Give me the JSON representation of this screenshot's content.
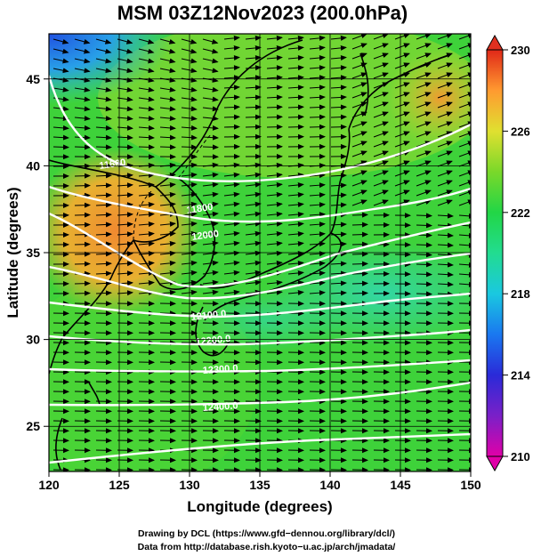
{
  "title": "MSM 03Z12Nov2023 (200.0hPa)",
  "footer": {
    "line1": "Drawing by DCL (https://www.gfd−dennou.org/library/dcl/)",
    "line2": "Data from http://database.rish.kyoto−u.ac.jp/arch/jmadata/"
  },
  "axes": {
    "xlabel": "Longitude (degrees)",
    "ylabel": "Latitude  (degrees)",
    "xticks": [
      "120",
      "125",
      "130",
      "135",
      "140",
      "145",
      "150"
    ],
    "yticks": [
      "25",
      "30",
      "35",
      "40",
      "45"
    ]
  },
  "colorbar": {
    "ticks": [
      "210",
      "214",
      "218",
      "222",
      "226",
      "230"
    ],
    "colors": [
      "#e000a8",
      "#2a2ad8",
      "#1aa0f0",
      "#22dcb0",
      "#22d646",
      "#4ecc2a",
      "#c8e630",
      "#ffb030",
      "#f05a28",
      "#e02818"
    ]
  },
  "contour_labels": [
    "11600",
    "11800",
    "12000",
    "12100.0",
    "12200.0",
    "12300.0",
    "12400.0"
  ],
  "chart_data": {
    "type": "heatmap",
    "title": "MSM 03Z12Nov2023 (200.0hPa)",
    "xlabel": "Longitude (degrees)",
    "ylabel": "Latitude  (degrees)",
    "xlim": [
      120,
      150
    ],
    "ylim": [
      22.4,
      47.6
    ],
    "colorbar_range": [
      210,
      230
    ],
    "contour_values": [
      11600,
      11800,
      12000,
      12100,
      12200,
      12300,
      12400
    ]
  }
}
